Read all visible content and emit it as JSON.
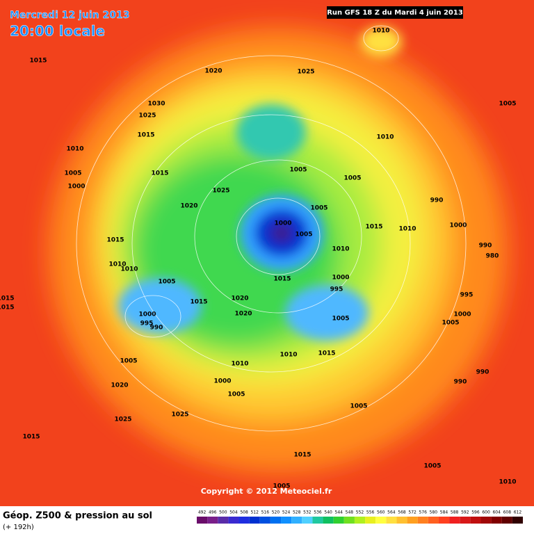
{
  "header": {
    "date": "Mercredi 12 juin 2013",
    "time": "20:00 locale",
    "run": "Run GFS 18 Z du Mardi 4 juin 2013"
  },
  "copyright": "Copyright © 2012 Meteociel.fr",
  "footer": {
    "title": "Géop. Z500 & pression au sol",
    "lead": "(+ 192h)"
  },
  "isobar_labels": [
    "1010",
    "1015",
    "1020",
    "1025",
    "1030",
    "1005",
    "1025",
    "1015",
    "1010",
    "1010",
    "1005",
    "1015",
    "1005",
    "1005",
    "1000",
    "1025",
    "990",
    "1020",
    "1005",
    "1000",
    "1015",
    "1010",
    "1000",
    "1005",
    "1015",
    "990",
    "980",
    "1010",
    "1010",
    "1010",
    "1000",
    "1015",
    "1005",
    "995",
    "995",
    "1015",
    "1015",
    "1020",
    "1015",
    "1020",
    "1000",
    "1000",
    "1005",
    "995",
    "990",
    "1005",
    "1010",
    "1015",
    "1005",
    "1010",
    "990",
    "1000",
    "990",
    "1020",
    "1005",
    "1005",
    "1025",
    "1025",
    "1015",
    "1015",
    "1005",
    "1010",
    "1005"
  ],
  "color_scale": {
    "labels": [
      492,
      496,
      500,
      504,
      508,
      512,
      516,
      520,
      524,
      528,
      532,
      536,
      540,
      544,
      548,
      552,
      556,
      560,
      564,
      568,
      572,
      576,
      580,
      584,
      588,
      592,
      596,
      600,
      604,
      608,
      612
    ],
    "colors": [
      "#6a0d6a",
      "#7a1f8a",
      "#5a2ca8",
      "#3a2ad0",
      "#1f2ee0",
      "#0030d0",
      "#0050e0",
      "#0070f0",
      "#1090ff",
      "#30b0ff",
      "#50d0ff",
      "#20c8a0",
      "#10c060",
      "#30d030",
      "#70e020",
      "#b0f020",
      "#e8f020",
      "#ffff40",
      "#ffe040",
      "#ffc030",
      "#ffa020",
      "#ff8020",
      "#ff6020",
      "#ff4020",
      "#f02020",
      "#d81818",
      "#c01010",
      "#a00808",
      "#800000",
      "#600000",
      "#300000"
    ]
  }
}
